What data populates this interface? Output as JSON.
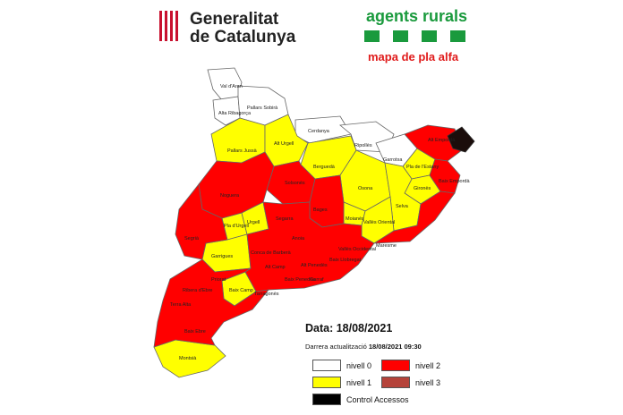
{
  "header": {
    "generalitat_line1": "Generalitat",
    "generalitat_line2": "de Catalunya",
    "agents_title": "agents rurals",
    "map_title": "mapa de pla alfa"
  },
  "colors": {
    "nivell0": "#ffffff",
    "nivell1": "#ffff00",
    "nivell2": "#ff0000",
    "nivell3": "#b5433a",
    "control": "#000000",
    "brand_green": "#1a9a3d"
  },
  "info": {
    "data_label": "Data: 18/08/2021",
    "update_label": "Darrera actualització",
    "update_value": "18/08/2021 09:30"
  },
  "legend": [
    {
      "label": "nivell 0",
      "level": "nivell0"
    },
    {
      "label": "nivell 2",
      "level": "nivell2"
    },
    {
      "label": "nivell 1",
      "level": "nivell1"
    },
    {
      "label": "nivell 3",
      "level": "nivell3"
    },
    {
      "label": "Control Accessos",
      "level": "control"
    }
  ],
  "regions": [
    {
      "label": "Val d'Aran",
      "level": "nivell0"
    },
    {
      "label": "Alta Ribagorça",
      "level": "nivell0"
    },
    {
      "label": "Pallars Sobirà",
      "level": "nivell0"
    },
    {
      "label": "Pallars Jussà",
      "level": "nivell1"
    },
    {
      "label": "Alt Urgell",
      "level": "nivell1"
    },
    {
      "label": "Cerdanya",
      "level": "nivell0"
    },
    {
      "label": "Ripollès",
      "level": "nivell0"
    },
    {
      "label": "Garrotxa",
      "level": "nivell0"
    },
    {
      "label": "Alt Empordà",
      "level": "nivell2"
    },
    {
      "label": "Pla de l'Estany",
      "level": "nivell1"
    },
    {
      "label": "Gironès",
      "level": "nivell1"
    },
    {
      "label": "Baix Empordà",
      "level": "nivell2"
    },
    {
      "label": "Berguedà",
      "level": "nivell1"
    },
    {
      "label": "Solsonès",
      "level": "nivell2"
    },
    {
      "label": "Noguera",
      "level": "nivell2"
    },
    {
      "label": "Osona",
      "level": "nivell1"
    },
    {
      "label": "Selva",
      "level": "nivell1"
    },
    {
      "label": "Bages",
      "level": "nivell2"
    },
    {
      "label": "Moianès",
      "level": "nivell1"
    },
    {
      "label": "Segarra",
      "level": "nivell2"
    },
    {
      "label": "Pla d'Urgell",
      "level": "nivell1"
    },
    {
      "label": "Urgell",
      "level": "nivell1"
    },
    {
      "label": "Segrià",
      "level": "nivell2"
    },
    {
      "label": "Garrigues",
      "level": "nivell1"
    },
    {
      "label": "Anoia",
      "level": "nivell2"
    },
    {
      "label": "Vallès Oriental",
      "level": "nivell1"
    },
    {
      "label": "Maresme",
      "level": "nivell2"
    },
    {
      "label": "Vallès Occidental",
      "level": "nivell2"
    },
    {
      "label": "Conca de Barberà",
      "level": "nivell2"
    },
    {
      "label": "Alt Penedès",
      "level": "nivell2"
    },
    {
      "label": "Baix Llobregat",
      "level": "nivell2"
    },
    {
      "label": "Alt Camp",
      "level": "nivell2"
    },
    {
      "label": "Baix Penedès",
      "level": "nivell2"
    },
    {
      "label": "Garraf",
      "level": "nivell2"
    },
    {
      "label": "Priorat",
      "level": "nivell2"
    },
    {
      "label": "Ribera d'Ebre",
      "level": "nivell2"
    },
    {
      "label": "Baix Camp",
      "level": "nivell1"
    },
    {
      "label": "Tarragonès",
      "level": "nivell2"
    },
    {
      "label": "Terra Alta",
      "level": "nivell2"
    },
    {
      "label": "Baix Ebre",
      "level": "nivell2"
    },
    {
      "label": "Montsià",
      "level": "nivell1"
    }
  ]
}
